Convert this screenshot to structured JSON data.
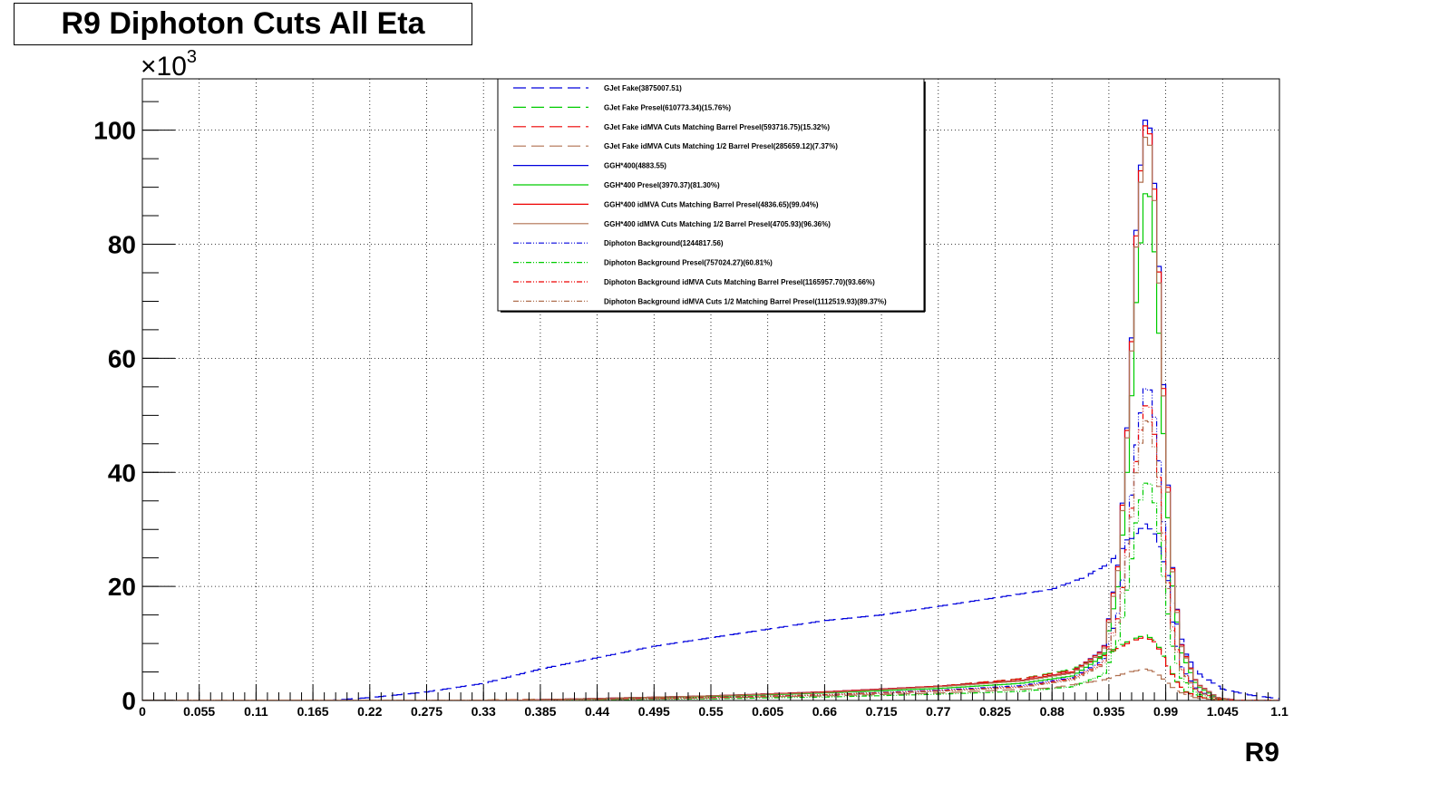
{
  "chart_data": {
    "type": "line",
    "title": "R9 Diphoton Cuts All Eta",
    "xlabel": "R9",
    "ylabel": "",
    "yexponent": "×10",
    "yexponent_power": "3",
    "xlim": [
      0,
      1.1
    ],
    "ylim": [
      0,
      109
    ],
    "x_ticks": [
      "0",
      "0.055",
      "0.11",
      "0.165",
      "0.22",
      "0.275",
      "0.33",
      "0.385",
      "0.44",
      "0.495",
      "0.55",
      "0.605",
      "0.66",
      "0.715",
      "0.77",
      "0.825",
      "0.88",
      "0.935",
      "0.99",
      "1.045",
      "1.1"
    ],
    "y_ticks": [
      "0",
      "20",
      "40",
      "60",
      "80",
      "100"
    ],
    "grid": true,
    "legend_position": "top-center",
    "series": [
      {
        "name": "GJet Fake(3875007.51)",
        "color": "#0000dd",
        "dash": "long-dash",
        "points": [
          [
            0.18,
            0
          ],
          [
            0.22,
            0.5
          ],
          [
            0.275,
            1.5
          ],
          [
            0.33,
            3
          ],
          [
            0.385,
            5.5
          ],
          [
            0.44,
            7.5
          ],
          [
            0.495,
            9.5
          ],
          [
            0.55,
            11
          ],
          [
            0.605,
            12.5
          ],
          [
            0.66,
            14
          ],
          [
            0.715,
            15
          ],
          [
            0.77,
            16.5
          ],
          [
            0.825,
            18
          ],
          [
            0.88,
            19.5
          ],
          [
            0.91,
            21.5
          ],
          [
            0.935,
            24
          ],
          [
            0.955,
            28
          ],
          [
            0.97,
            31
          ],
          [
            0.98,
            29
          ],
          [
            0.99,
            23
          ],
          [
            1.0,
            14
          ],
          [
            1.01,
            8
          ],
          [
            1.02,
            5
          ],
          [
            1.045,
            2
          ],
          [
            1.07,
            1
          ],
          [
            1.1,
            0.3
          ]
        ]
      },
      {
        "name": "GJet Fake Presel(610773.34)(15.76%)",
        "color": "#00cc00",
        "dash": "long-dash",
        "points": [
          [
            0.3,
            0
          ],
          [
            0.44,
            0.3
          ],
          [
            0.55,
            0.8
          ],
          [
            0.66,
            1.5
          ],
          [
            0.77,
            2.5
          ],
          [
            0.85,
            3.8
          ],
          [
            0.9,
            5.5
          ],
          [
            0.93,
            8
          ],
          [
            0.955,
            10.5
          ],
          [
            0.97,
            11.5
          ],
          [
            0.98,
            10.5
          ],
          [
            0.99,
            7
          ],
          [
            1.0,
            3.5
          ],
          [
            1.01,
            1.5
          ],
          [
            1.03,
            0.3
          ],
          [
            1.05,
            0
          ]
        ]
      },
      {
        "name": "GJet Fake idMVA Cuts Matching Barrel Presel(593716.75)(15.32%)",
        "color": "#ee0000",
        "dash": "long-dash",
        "points": [
          [
            0.3,
            0
          ],
          [
            0.44,
            0.3
          ],
          [
            0.55,
            0.8
          ],
          [
            0.66,
            1.5
          ],
          [
            0.77,
            2.5
          ],
          [
            0.85,
            3.8
          ],
          [
            0.9,
            5.3
          ],
          [
            0.93,
            7.8
          ],
          [
            0.955,
            10.2
          ],
          [
            0.97,
            11.2
          ],
          [
            0.98,
            10.2
          ],
          [
            0.99,
            6.8
          ],
          [
            1.0,
            3.4
          ],
          [
            1.01,
            1.4
          ],
          [
            1.03,
            0.3
          ],
          [
            1.05,
            0
          ]
        ]
      },
      {
        "name": "GJet Fake idMVA Cuts Matching 1/2 Barrel Presel(285659.12)(7.37%)",
        "color": "#b07050",
        "dash": "long-dash",
        "points": [
          [
            0.35,
            0
          ],
          [
            0.5,
            0.3
          ],
          [
            0.66,
            0.8
          ],
          [
            0.77,
            1.3
          ],
          [
            0.88,
            2.2
          ],
          [
            0.93,
            3.6
          ],
          [
            0.955,
            5
          ],
          [
            0.97,
            5.5
          ],
          [
            0.98,
            5
          ],
          [
            0.99,
            3.4
          ],
          [
            1.0,
            1.7
          ],
          [
            1.02,
            0.4
          ],
          [
            1.05,
            0
          ]
        ]
      },
      {
        "name": "GGH*400(4883.55)",
        "color": "#0000dd",
        "dash": "solid",
        "points": [
          [
            0.35,
            0
          ],
          [
            0.55,
            0.8
          ],
          [
            0.66,
            1.5
          ],
          [
            0.77,
            2.5
          ],
          [
            0.85,
            3.5
          ],
          [
            0.9,
            5
          ],
          [
            0.93,
            9
          ],
          [
            0.945,
            25
          ],
          [
            0.955,
            55
          ],
          [
            0.962,
            85
          ],
          [
            0.968,
            99
          ],
          [
            0.972,
            104
          ],
          [
            0.977,
            97
          ],
          [
            0.983,
            78
          ],
          [
            0.99,
            45
          ],
          [
            0.997,
            22
          ],
          [
            1.005,
            10
          ],
          [
            1.02,
            3
          ],
          [
            1.04,
            0.5
          ],
          [
            1.06,
            0
          ]
        ]
      },
      {
        "name": "GGH*400 Presel(3970.37)(81.30%)",
        "color": "#00cc00",
        "dash": "solid",
        "points": [
          [
            0.35,
            0
          ],
          [
            0.55,
            0.7
          ],
          [
            0.66,
            1.3
          ],
          [
            0.77,
            2.1
          ],
          [
            0.85,
            3
          ],
          [
            0.9,
            4.3
          ],
          [
            0.93,
            7.8
          ],
          [
            0.945,
            21
          ],
          [
            0.955,
            46
          ],
          [
            0.962,
            72
          ],
          [
            0.968,
            85
          ],
          [
            0.972,
            92
          ],
          [
            0.977,
            85
          ],
          [
            0.983,
            66
          ],
          [
            0.99,
            38
          ],
          [
            0.997,
            19
          ],
          [
            1.005,
            8.5
          ],
          [
            1.02,
            2.6
          ],
          [
            1.04,
            0.4
          ],
          [
            1.06,
            0
          ]
        ]
      },
      {
        "name": "GGH*400 idMVA Cuts Matching Barrel Presel(4836.65)(99.04%)",
        "color": "#ee0000",
        "dash": "solid",
        "points": [
          [
            0.35,
            0
          ],
          [
            0.55,
            0.8
          ],
          [
            0.66,
            1.5
          ],
          [
            0.77,
            2.5
          ],
          [
            0.85,
            3.5
          ],
          [
            0.9,
            5
          ],
          [
            0.93,
            8.9
          ],
          [
            0.945,
            24.7
          ],
          [
            0.955,
            54.5
          ],
          [
            0.962,
            84
          ],
          [
            0.968,
            98
          ],
          [
            0.972,
            103
          ],
          [
            0.977,
            96
          ],
          [
            0.983,
            77
          ],
          [
            0.99,
            44.5
          ],
          [
            0.997,
            21.8
          ],
          [
            1.005,
            9.9
          ],
          [
            1.02,
            3
          ],
          [
            1.04,
            0.5
          ],
          [
            1.06,
            0
          ]
        ]
      },
      {
        "name": "GGH*400 idMVA Cuts Matching 1/2 Barrel Presel(4705.93)(96.36%)",
        "color": "#b07050",
        "dash": "solid",
        "points": [
          [
            0.35,
            0
          ],
          [
            0.55,
            0.8
          ],
          [
            0.66,
            1.4
          ],
          [
            0.77,
            2.4
          ],
          [
            0.85,
            3.4
          ],
          [
            0.9,
            4.8
          ],
          [
            0.93,
            8.6
          ],
          [
            0.945,
            24
          ],
          [
            0.955,
            53
          ],
          [
            0.962,
            82
          ],
          [
            0.968,
            96
          ],
          [
            0.972,
            101
          ],
          [
            0.977,
            94
          ],
          [
            0.983,
            75
          ],
          [
            0.99,
            43.5
          ],
          [
            0.997,
            21.3
          ],
          [
            1.005,
            9.6
          ],
          [
            1.02,
            2.9
          ],
          [
            1.04,
            0.5
          ],
          [
            1.06,
            0
          ]
        ]
      },
      {
        "name": "Diphoton Background(1244817.56)",
        "color": "#0000dd",
        "dash": "dash-dot-dot",
        "points": [
          [
            0.35,
            0
          ],
          [
            0.55,
            0.5
          ],
          [
            0.66,
            1
          ],
          [
            0.77,
            1.8
          ],
          [
            0.85,
            2.6
          ],
          [
            0.9,
            4
          ],
          [
            0.93,
            7
          ],
          [
            0.945,
            16
          ],
          [
            0.955,
            32
          ],
          [
            0.962,
            46
          ],
          [
            0.968,
            53
          ],
          [
            0.972,
            56
          ],
          [
            0.977,
            53
          ],
          [
            0.983,
            43
          ],
          [
            0.99,
            26
          ],
          [
            0.997,
            13
          ],
          [
            1.005,
            6
          ],
          [
            1.02,
            1.8
          ],
          [
            1.04,
            0.3
          ],
          [
            1.06,
            0
          ]
        ]
      },
      {
        "name": "Diphoton Background Presel(757024.27)(60.81%)",
        "color": "#00cc00",
        "dash": "dash-dot-dot",
        "points": [
          [
            0.35,
            0
          ],
          [
            0.55,
            0.3
          ],
          [
            0.66,
            0.6
          ],
          [
            0.77,
            1.1
          ],
          [
            0.85,
            1.6
          ],
          [
            0.9,
            2.4
          ],
          [
            0.93,
            4.5
          ],
          [
            0.945,
            11
          ],
          [
            0.955,
            22
          ],
          [
            0.962,
            32
          ],
          [
            0.968,
            37
          ],
          [
            0.972,
            39
          ],
          [
            0.977,
            37
          ],
          [
            0.983,
            30
          ],
          [
            0.99,
            18
          ],
          [
            0.997,
            9
          ],
          [
            1.005,
            4
          ],
          [
            1.02,
            1.2
          ],
          [
            1.04,
            0.2
          ],
          [
            1.06,
            0
          ]
        ]
      },
      {
        "name": "Diphoton Background idMVA Cuts Matching Barrel Presel(1165957.70)(93.66%)",
        "color": "#ee0000",
        "dash": "dash-dot-dot",
        "points": [
          [
            0.35,
            0
          ],
          [
            0.55,
            0.5
          ],
          [
            0.66,
            1
          ],
          [
            0.77,
            1.7
          ],
          [
            0.85,
            2.4
          ],
          [
            0.9,
            3.8
          ],
          [
            0.93,
            6.6
          ],
          [
            0.945,
            15
          ],
          [
            0.955,
            30
          ],
          [
            0.962,
            43
          ],
          [
            0.968,
            50
          ],
          [
            0.972,
            53
          ],
          [
            0.977,
            50
          ],
          [
            0.983,
            40
          ],
          [
            0.99,
            24.5
          ],
          [
            0.997,
            12.2
          ],
          [
            1.005,
            5.6
          ],
          [
            1.02,
            1.7
          ],
          [
            1.04,
            0.3
          ],
          [
            1.06,
            0
          ]
        ]
      },
      {
        "name": "Diphoton Background idMVA Cuts 1/2 Matching Barrel Presel(1112519.93)(89.37%)",
        "color": "#b07050",
        "dash": "dash-dot-dot",
        "points": [
          [
            0.35,
            0
          ],
          [
            0.55,
            0.4
          ],
          [
            0.66,
            0.9
          ],
          [
            0.77,
            1.6
          ],
          [
            0.85,
            2.3
          ],
          [
            0.9,
            3.6
          ],
          [
            0.93,
            6.3
          ],
          [
            0.945,
            14.3
          ],
          [
            0.955,
            28.6
          ],
          [
            0.962,
            41
          ],
          [
            0.968,
            47.5
          ],
          [
            0.972,
            50.3
          ],
          [
            0.977,
            47.5
          ],
          [
            0.983,
            38.4
          ],
          [
            0.99,
            23.3
          ],
          [
            0.997,
            11.6
          ],
          [
            1.005,
            5.4
          ],
          [
            1.02,
            1.6
          ],
          [
            1.04,
            0.3
          ],
          [
            1.06,
            0
          ]
        ]
      }
    ]
  }
}
